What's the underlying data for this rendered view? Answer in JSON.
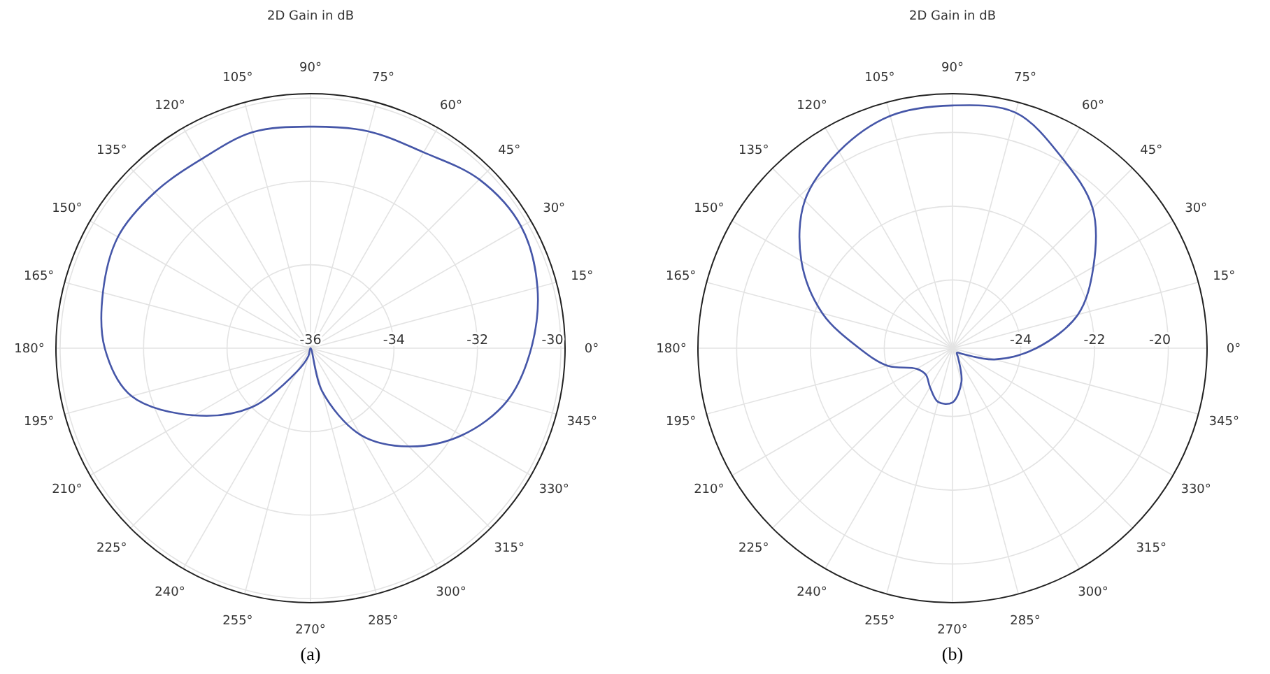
{
  "chart_data": [
    {
      "type": "radar",
      "title": "2D Gain in dB",
      "categories": [
        "90°",
        "75°",
        "60°",
        "45°",
        "30°",
        "15°",
        "0°",
        "345°",
        "330°",
        "315°",
        "300°",
        "285°",
        "270°",
        "255°",
        "240°",
        "225°",
        "210°",
        "195°",
        "180°",
        "165°",
        "150°",
        "135°",
        "120°",
        "105°"
      ],
      "series": [
        {
          "color": "#4556a8",
          "values": [
            -30.69,
            -30.62,
            -30.58,
            -30.28,
            -30.17,
            -30.37,
            -30.71,
            -31.12,
            -31.82,
            -32.67,
            -33.6,
            -34.94,
            -36,
            -35.8,
            -35.36,
            -33.99,
            -32.78,
            -31.56,
            -31.07,
            -30.85,
            -30.67,
            -30.72,
            -30.77,
            -30.64
          ]
        }
      ],
      "ylim": [
        -36,
        -29.9
      ],
      "yticks": [
        -36,
        -34,
        -32,
        -30
      ],
      "grid": true,
      "annotations": [
        "(a)"
      ]
    },
    {
      "type": "radar",
      "title": "2D Gain in dB",
      "categories": [
        "90°",
        "75°",
        "60°",
        "45°",
        "30°",
        "15°",
        "0°",
        "345°",
        "330°",
        "315°",
        "300°",
        "285°",
        "270°",
        "255°",
        "240°",
        "225°",
        "210°",
        "195°",
        "180°",
        "165°",
        "150°",
        "135°",
        "120°",
        "105°"
      ],
      "series": [
        {
          "color": "#4556a8",
          "values": [
            -19.27,
            -19.24,
            -19.9,
            -20.48,
            -21.44,
            -22.33,
            -23.58,
            -24.67,
            -25.54,
            -25.68,
            -25.54,
            -24.91,
            -24.38,
            -24.34,
            -24.63,
            -24.83,
            -24.73,
            -24.02,
            -23.32,
            -22.2,
            -21.12,
            -20.19,
            -19.69,
            -19.33
          ]
        }
      ],
      "ylim": [
        -25.85,
        -18.95
      ],
      "yticks": [
        -24,
        -22,
        -20
      ],
      "grid": true,
      "annotations": [
        "(b)"
      ]
    }
  ]
}
